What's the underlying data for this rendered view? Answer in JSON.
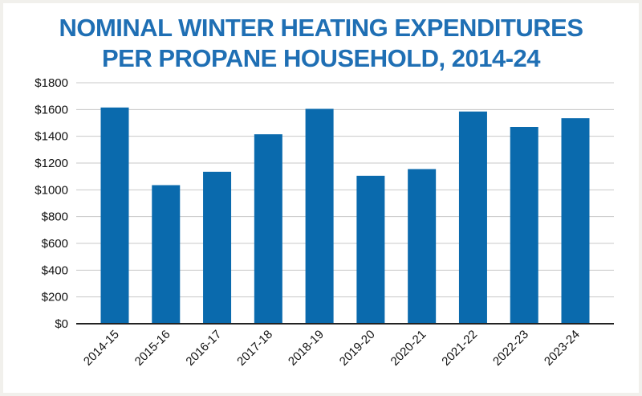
{
  "chart_data": {
    "type": "bar",
    "title_lines": [
      "NOMINAL WINTER HEATING EXPENDITURES",
      "PER PROPANE HOUSEHOLD, 2014-24"
    ],
    "xlabel": "",
    "ylabel": "",
    "categories": [
      "2014-15",
      "2015-16",
      "2016-17",
      "2017-18",
      "2018-19",
      "2019-20",
      "2020-21",
      "2021-22",
      "2022-23",
      "2023-24"
    ],
    "values": [
      1615,
      1035,
      1135,
      1415,
      1605,
      1105,
      1155,
      1585,
      1470,
      1535
    ],
    "ylim": [
      0,
      1800
    ],
    "yticks": [
      0,
      200,
      400,
      600,
      800,
      1000,
      1200,
      1400,
      1600,
      1800
    ],
    "ytick_labels": [
      "$0",
      "$200",
      "$400",
      "$600",
      "$800",
      "$1000",
      "$1200",
      "$1400",
      "$1600",
      "$1800"
    ],
    "grid": true,
    "bar_color": "#0a6aad",
    "title_color": "#1f6fb4",
    "grid_color": "#c8c8c8"
  }
}
